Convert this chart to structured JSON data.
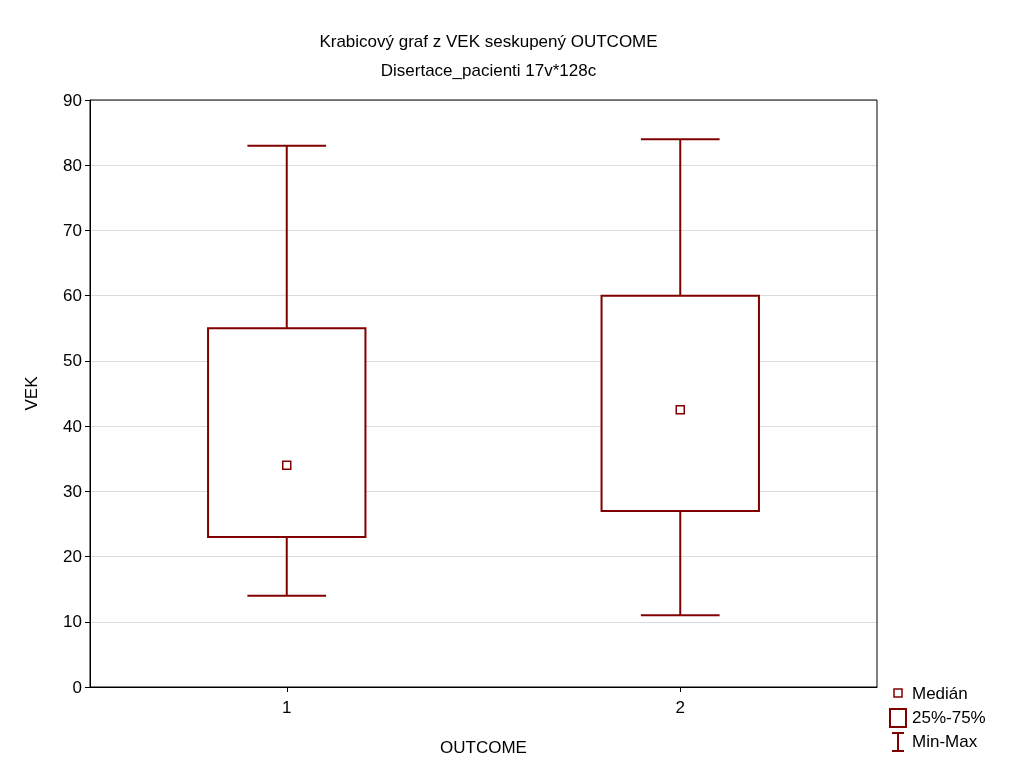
{
  "chart_data": {
    "type": "box",
    "title": "Krabicový graf z VEK seskupený OUTCOME",
    "subtitle": "Disertace_pacienti 17v*128c",
    "xlabel": "OUTCOME",
    "ylabel": "VEK",
    "categories": [
      "1",
      "2"
    ],
    "series": [
      {
        "color": "#800000",
        "boxes": [
          {
            "low": 14,
            "q1": 23,
            "median": 34,
            "q3": 55,
            "high": 83
          },
          {
            "low": 11,
            "q1": 27,
            "median": 42.5,
            "q3": 60,
            "high": 84
          }
        ]
      }
    ],
    "ylim": [
      0,
      90
    ],
    "yticks": [
      0,
      10,
      20,
      30,
      40,
      50,
      60,
      70,
      80,
      90
    ],
    "grid": "y",
    "marker": "square",
    "annotations": [
      "Medián",
      "25%-75%",
      "Min-Max"
    ]
  }
}
